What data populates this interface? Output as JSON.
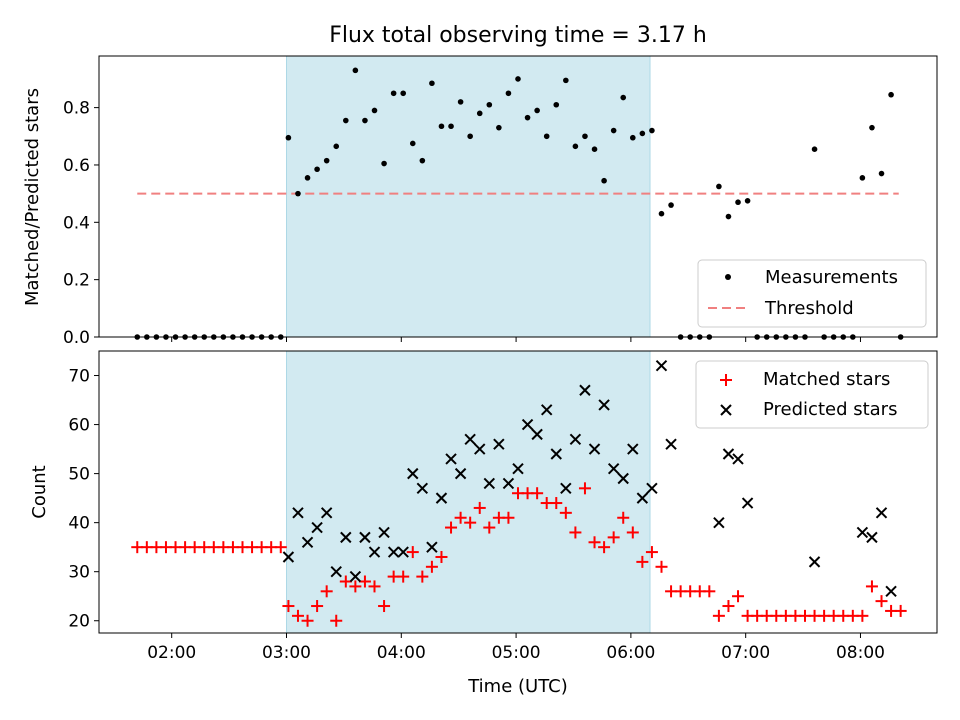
{
  "chart_data": [
    {
      "type": "scatter",
      "title": "Flux total observing time = 3.17 h",
      "xlabel": "",
      "ylabel": "Matched/Predicted stars",
      "xlim": [
        "01:22",
        "08:40"
      ],
      "ylim": [
        0,
        0.98
      ],
      "yticks": [
        0.0,
        0.2,
        0.4,
        0.6,
        0.8
      ],
      "ytick_labels": [
        "0.0",
        "0.2",
        "0.4",
        "0.6",
        "0.8"
      ],
      "shaded_region": {
        "start": "03:00",
        "end": "06:10",
        "color": "#add8e6"
      },
      "threshold": {
        "value": 0.5,
        "start": "01:42",
        "end": "08:20",
        "color": "#f08080",
        "style": "dashed"
      },
      "legend": {
        "position": "lower-right",
        "entries": [
          {
            "label": "Measurements",
            "marker": "dot",
            "color": "#000000"
          },
          {
            "label": "Threshold",
            "marker": "dashed-line",
            "color": "#f08080"
          }
        ]
      },
      "series": [
        {
          "name": "Measurements",
          "color": "#000000",
          "points": [
            [
              "01:42",
              0
            ],
            [
              "01:47",
              0
            ],
            [
              "01:52",
              0
            ],
            [
              "01:57",
              0
            ],
            [
              "02:02",
              0
            ],
            [
              "02:07",
              0
            ],
            [
              "02:12",
              0
            ],
            [
              "02:17",
              0
            ],
            [
              "02:22",
              0
            ],
            [
              "02:27",
              0
            ],
            [
              "02:32",
              0
            ],
            [
              "02:37",
              0
            ],
            [
              "02:42",
              0
            ],
            [
              "02:47",
              0
            ],
            [
              "02:52",
              0
            ],
            [
              "02:57",
              0
            ],
            [
              "03:01",
              0.695
            ],
            [
              "03:06",
              0.5
            ],
            [
              "03:11",
              0.555
            ],
            [
              "03:16",
              0.585
            ],
            [
              "03:21",
              0.615
            ],
            [
              "03:26",
              0.665
            ],
            [
              "03:31",
              0.755
            ],
            [
              "03:36",
              0.93
            ],
            [
              "03:41",
              0.755
            ],
            [
              "03:46",
              0.79
            ],
            [
              "03:51",
              0.605
            ],
            [
              "03:56",
              0.85
            ],
            [
              "04:01",
              0.85
            ],
            [
              "04:06",
              0.675
            ],
            [
              "04:11",
              0.615
            ],
            [
              "04:16",
              0.885
            ],
            [
              "04:21",
              0.735
            ],
            [
              "04:26",
              0.735
            ],
            [
              "04:31",
              0.82
            ],
            [
              "04:36",
              0.7
            ],
            [
              "04:41",
              0.78
            ],
            [
              "04:46",
              0.81
            ],
            [
              "04:51",
              0.73
            ],
            [
              "04:56",
              0.85
            ],
            [
              "05:01",
              0.9
            ],
            [
              "05:06",
              0.765
            ],
            [
              "05:11",
              0.79
            ],
            [
              "05:16",
              0.7
            ],
            [
              "05:21",
              0.81
            ],
            [
              "05:26",
              0.895
            ],
            [
              "05:31",
              0.665
            ],
            [
              "05:36",
              0.7
            ],
            [
              "05:41",
              0.655
            ],
            [
              "05:46",
              0.545
            ],
            [
              "05:51",
              0.72
            ],
            [
              "05:56",
              0.835
            ],
            [
              "06:01",
              0.695
            ],
            [
              "06:06",
              0.71
            ],
            [
              "06:11",
              0.72
            ],
            [
              "06:16",
              0.43
            ],
            [
              "06:21",
              0.46
            ],
            [
              "06:26",
              0
            ],
            [
              "06:31",
              0
            ],
            [
              "06:36",
              0
            ],
            [
              "06:41",
              0
            ],
            [
              "06:46",
              0.525
            ],
            [
              "06:51",
              0.42
            ],
            [
              "06:56",
              0.47
            ],
            [
              "07:01",
              0.475
            ],
            [
              "07:06",
              0
            ],
            [
              "07:11",
              0
            ],
            [
              "07:16",
              0
            ],
            [
              "07:21",
              0
            ],
            [
              "07:26",
              0
            ],
            [
              "07:31",
              0
            ],
            [
              "07:36",
              0.655
            ],
            [
              "07:41",
              0
            ],
            [
              "07:46",
              0
            ],
            [
              "07:51",
              0
            ],
            [
              "07:56",
              0
            ],
            [
              "08:01",
              0.555
            ],
            [
              "08:06",
              0.73
            ],
            [
              "08:11",
              0.57
            ],
            [
              "08:16",
              0.845
            ],
            [
              "08:21",
              0
            ]
          ]
        }
      ]
    },
    {
      "type": "scatter",
      "title": "",
      "xlabel": "Time (UTC)",
      "ylabel": "Count",
      "xlim": [
        "01:22",
        "08:40"
      ],
      "ylim": [
        17.5,
        75
      ],
      "yticks": [
        20,
        30,
        40,
        50,
        60,
        70
      ],
      "ytick_labels": [
        "20",
        "30",
        "40",
        "50",
        "60",
        "70"
      ],
      "xticks": [
        "02:00",
        "03:00",
        "04:00",
        "05:00",
        "06:00",
        "07:00",
        "08:00"
      ],
      "xtick_labels": [
        "02:00",
        "03:00",
        "04:00",
        "05:00",
        "06:00",
        "07:00",
        "08:00"
      ],
      "shaded_region": {
        "start": "03:00",
        "end": "06:10",
        "color": "#add8e6"
      },
      "legend": {
        "position": "top-right",
        "entries": [
          {
            "label": "Matched stars",
            "marker": "plus",
            "color": "#ff0000"
          },
          {
            "label": "Predicted stars",
            "marker": "x",
            "color": "#000000"
          }
        ]
      },
      "series": [
        {
          "name": "Matched stars",
          "color": "#ff0000",
          "points": [
            [
              "01:42",
              35
            ],
            [
              "01:47",
              35
            ],
            [
              "01:52",
              35
            ],
            [
              "01:57",
              35
            ],
            [
              "02:02",
              35
            ],
            [
              "02:07",
              35
            ],
            [
              "02:12",
              35
            ],
            [
              "02:17",
              35
            ],
            [
              "02:22",
              35
            ],
            [
              "02:27",
              35
            ],
            [
              "02:32",
              35
            ],
            [
              "02:37",
              35
            ],
            [
              "02:42",
              35
            ],
            [
              "02:47",
              35
            ],
            [
              "02:52",
              35
            ],
            [
              "02:57",
              35
            ],
            [
              "03:01",
              23
            ],
            [
              "03:06",
              21
            ],
            [
              "03:11",
              20
            ],
            [
              "03:16",
              23
            ],
            [
              "03:21",
              26
            ],
            [
              "03:26",
              20
            ],
            [
              "03:31",
              28
            ],
            [
              "03:36",
              27
            ],
            [
              "03:41",
              28
            ],
            [
              "03:46",
              27
            ],
            [
              "03:51",
              23
            ],
            [
              "03:56",
              29
            ],
            [
              "04:01",
              29
            ],
            [
              "04:06",
              34
            ],
            [
              "04:11",
              29
            ],
            [
              "04:16",
              31
            ],
            [
              "04:21",
              33
            ],
            [
              "04:26",
              39
            ],
            [
              "04:31",
              41
            ],
            [
              "04:36",
              40
            ],
            [
              "04:41",
              43
            ],
            [
              "04:46",
              39
            ],
            [
              "04:51",
              41
            ],
            [
              "04:56",
              41
            ],
            [
              "05:01",
              46
            ],
            [
              "05:06",
              46
            ],
            [
              "05:11",
              46
            ],
            [
              "05:16",
              44
            ],
            [
              "05:21",
              44
            ],
            [
              "05:26",
              42
            ],
            [
              "05:31",
              38
            ],
            [
              "05:36",
              47
            ],
            [
              "05:41",
              36
            ],
            [
              "05:46",
              35
            ],
            [
              "05:51",
              37
            ],
            [
              "05:56",
              41
            ],
            [
              "06:01",
              38
            ],
            [
              "06:06",
              32
            ],
            [
              "06:11",
              34
            ],
            [
              "06:16",
              31
            ],
            [
              "06:21",
              26
            ],
            [
              "06:26",
              26
            ],
            [
              "06:31",
              26
            ],
            [
              "06:36",
              26
            ],
            [
              "06:41",
              26
            ],
            [
              "06:46",
              21
            ],
            [
              "06:51",
              23
            ],
            [
              "06:56",
              25
            ],
            [
              "07:01",
              21
            ],
            [
              "07:06",
              21
            ],
            [
              "07:11",
              21
            ],
            [
              "07:16",
              21
            ],
            [
              "07:21",
              21
            ],
            [
              "07:26",
              21
            ],
            [
              "07:31",
              21
            ],
            [
              "07:36",
              21
            ],
            [
              "07:41",
              21
            ],
            [
              "07:46",
              21
            ],
            [
              "07:51",
              21
            ],
            [
              "07:56",
              21
            ],
            [
              "08:01",
              21
            ],
            [
              "08:06",
              27
            ],
            [
              "08:11",
              24
            ],
            [
              "08:16",
              22
            ],
            [
              "08:21",
              22
            ]
          ]
        },
        {
          "name": "Predicted stars",
          "color": "#000000",
          "points": [
            [
              "03:01",
              33
            ],
            [
              "03:06",
              42
            ],
            [
              "03:11",
              36
            ],
            [
              "03:16",
              39
            ],
            [
              "03:21",
              42
            ],
            [
              "03:26",
              30
            ],
            [
              "03:31",
              37
            ],
            [
              "03:36",
              29
            ],
            [
              "03:41",
              37
            ],
            [
              "03:46",
              34
            ],
            [
              "03:51",
              38
            ],
            [
              "03:56",
              34
            ],
            [
              "04:01",
              34
            ],
            [
              "04:06",
              50
            ],
            [
              "04:11",
              47
            ],
            [
              "04:16",
              35
            ],
            [
              "04:21",
              45
            ],
            [
              "04:26",
              53
            ],
            [
              "04:31",
              50
            ],
            [
              "04:36",
              57
            ],
            [
              "04:41",
              55
            ],
            [
              "04:46",
              48
            ],
            [
              "04:51",
              56
            ],
            [
              "04:56",
              48
            ],
            [
              "05:01",
              51
            ],
            [
              "05:06",
              60
            ],
            [
              "05:11",
              58
            ],
            [
              "05:16",
              63
            ],
            [
              "05:21",
              54
            ],
            [
              "05:26",
              47
            ],
            [
              "05:31",
              57
            ],
            [
              "05:36",
              67
            ],
            [
              "05:41",
              55
            ],
            [
              "05:46",
              64
            ],
            [
              "05:51",
              51
            ],
            [
              "05:56",
              49
            ],
            [
              "06:01",
              55
            ],
            [
              "06:06",
              45
            ],
            [
              "06:11",
              47
            ],
            [
              "06:16",
              72
            ],
            [
              "06:21",
              56
            ],
            [
              "06:46",
              40
            ],
            [
              "06:51",
              54
            ],
            [
              "06:56",
              53
            ],
            [
              "07:01",
              44
            ],
            [
              "07:36",
              32
            ],
            [
              "08:01",
              38
            ],
            [
              "08:06",
              37
            ],
            [
              "08:11",
              42
            ],
            [
              "08:16",
              26
            ]
          ]
        }
      ]
    }
  ]
}
